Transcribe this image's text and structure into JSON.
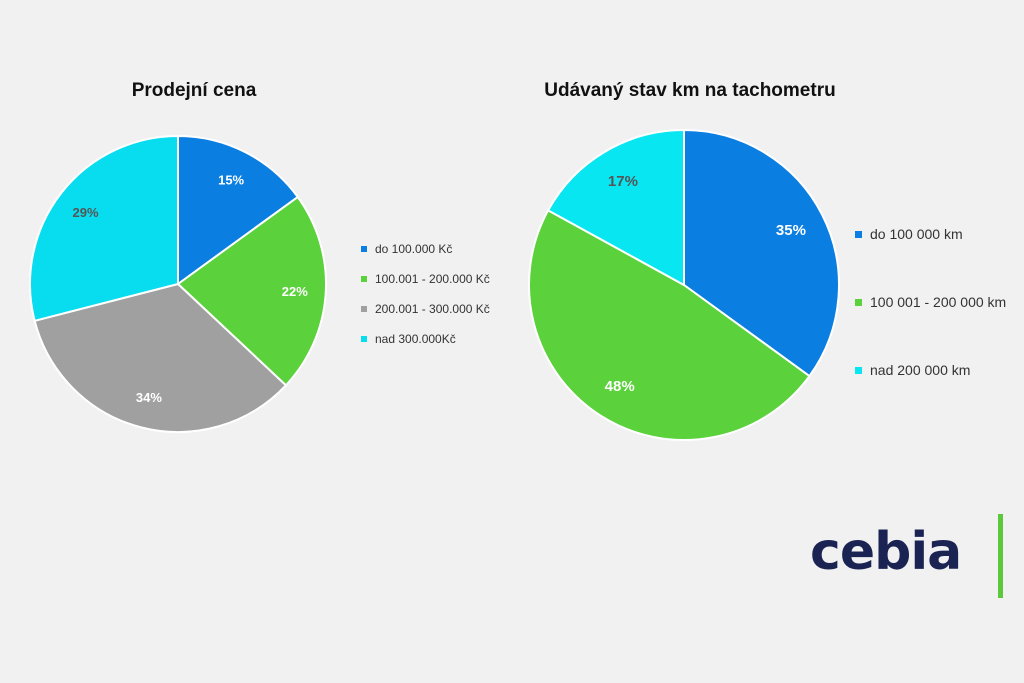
{
  "chart_data": [
    {
      "type": "pie",
      "title": "Prodejní cena",
      "categories": [
        "do 100.000 Kč",
        "100.001 - 200.000 Kč",
        "200.001 - 300.000 Kč",
        "nad 300.000Kč"
      ],
      "values": [
        15,
        22,
        34,
        29
      ],
      "labels": [
        "15%",
        "22%",
        "34%",
        "29%"
      ],
      "colors": [
        "#0b7ee2",
        "#5bd13c",
        "#a0a0a0",
        "#08dcef"
      ],
      "label_colors": [
        "#ffffff",
        "#ffffff",
        "#ffffff",
        "#555555"
      ],
      "legend_position": "right"
    },
    {
      "type": "pie",
      "title": "Udávaný stav km na tachometru",
      "categories": [
        "do 100 000 km",
        "100 001 - 200 000 km",
        "nad 200 000 km"
      ],
      "values": [
        35,
        48,
        17
      ],
      "labels": [
        "35%",
        "48%",
        "17%"
      ],
      "colors": [
        "#0b7ee2",
        "#5bd13c",
        "#08e6f2"
      ],
      "label_colors": [
        "#ffffff",
        "#ffffff",
        "#555555"
      ],
      "legend_position": "right"
    }
  ],
  "logo": {
    "text": "cebia",
    "accent_color": "#5cc93a",
    "text_color": "#1a2352"
  }
}
